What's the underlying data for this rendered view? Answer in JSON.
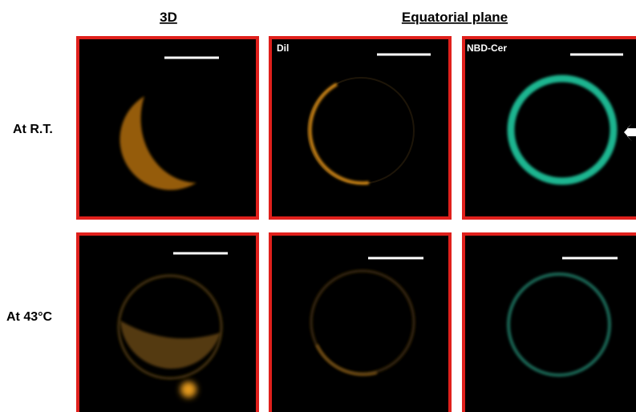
{
  "header": {
    "left": "3D",
    "right": "Equatorial plane"
  },
  "rows": [
    {
      "label": "At R.T."
    },
    {
      "label": "At 43°C"
    }
  ],
  "panels": {
    "middle": "Dil",
    "right": "NBD-Cer"
  }
}
